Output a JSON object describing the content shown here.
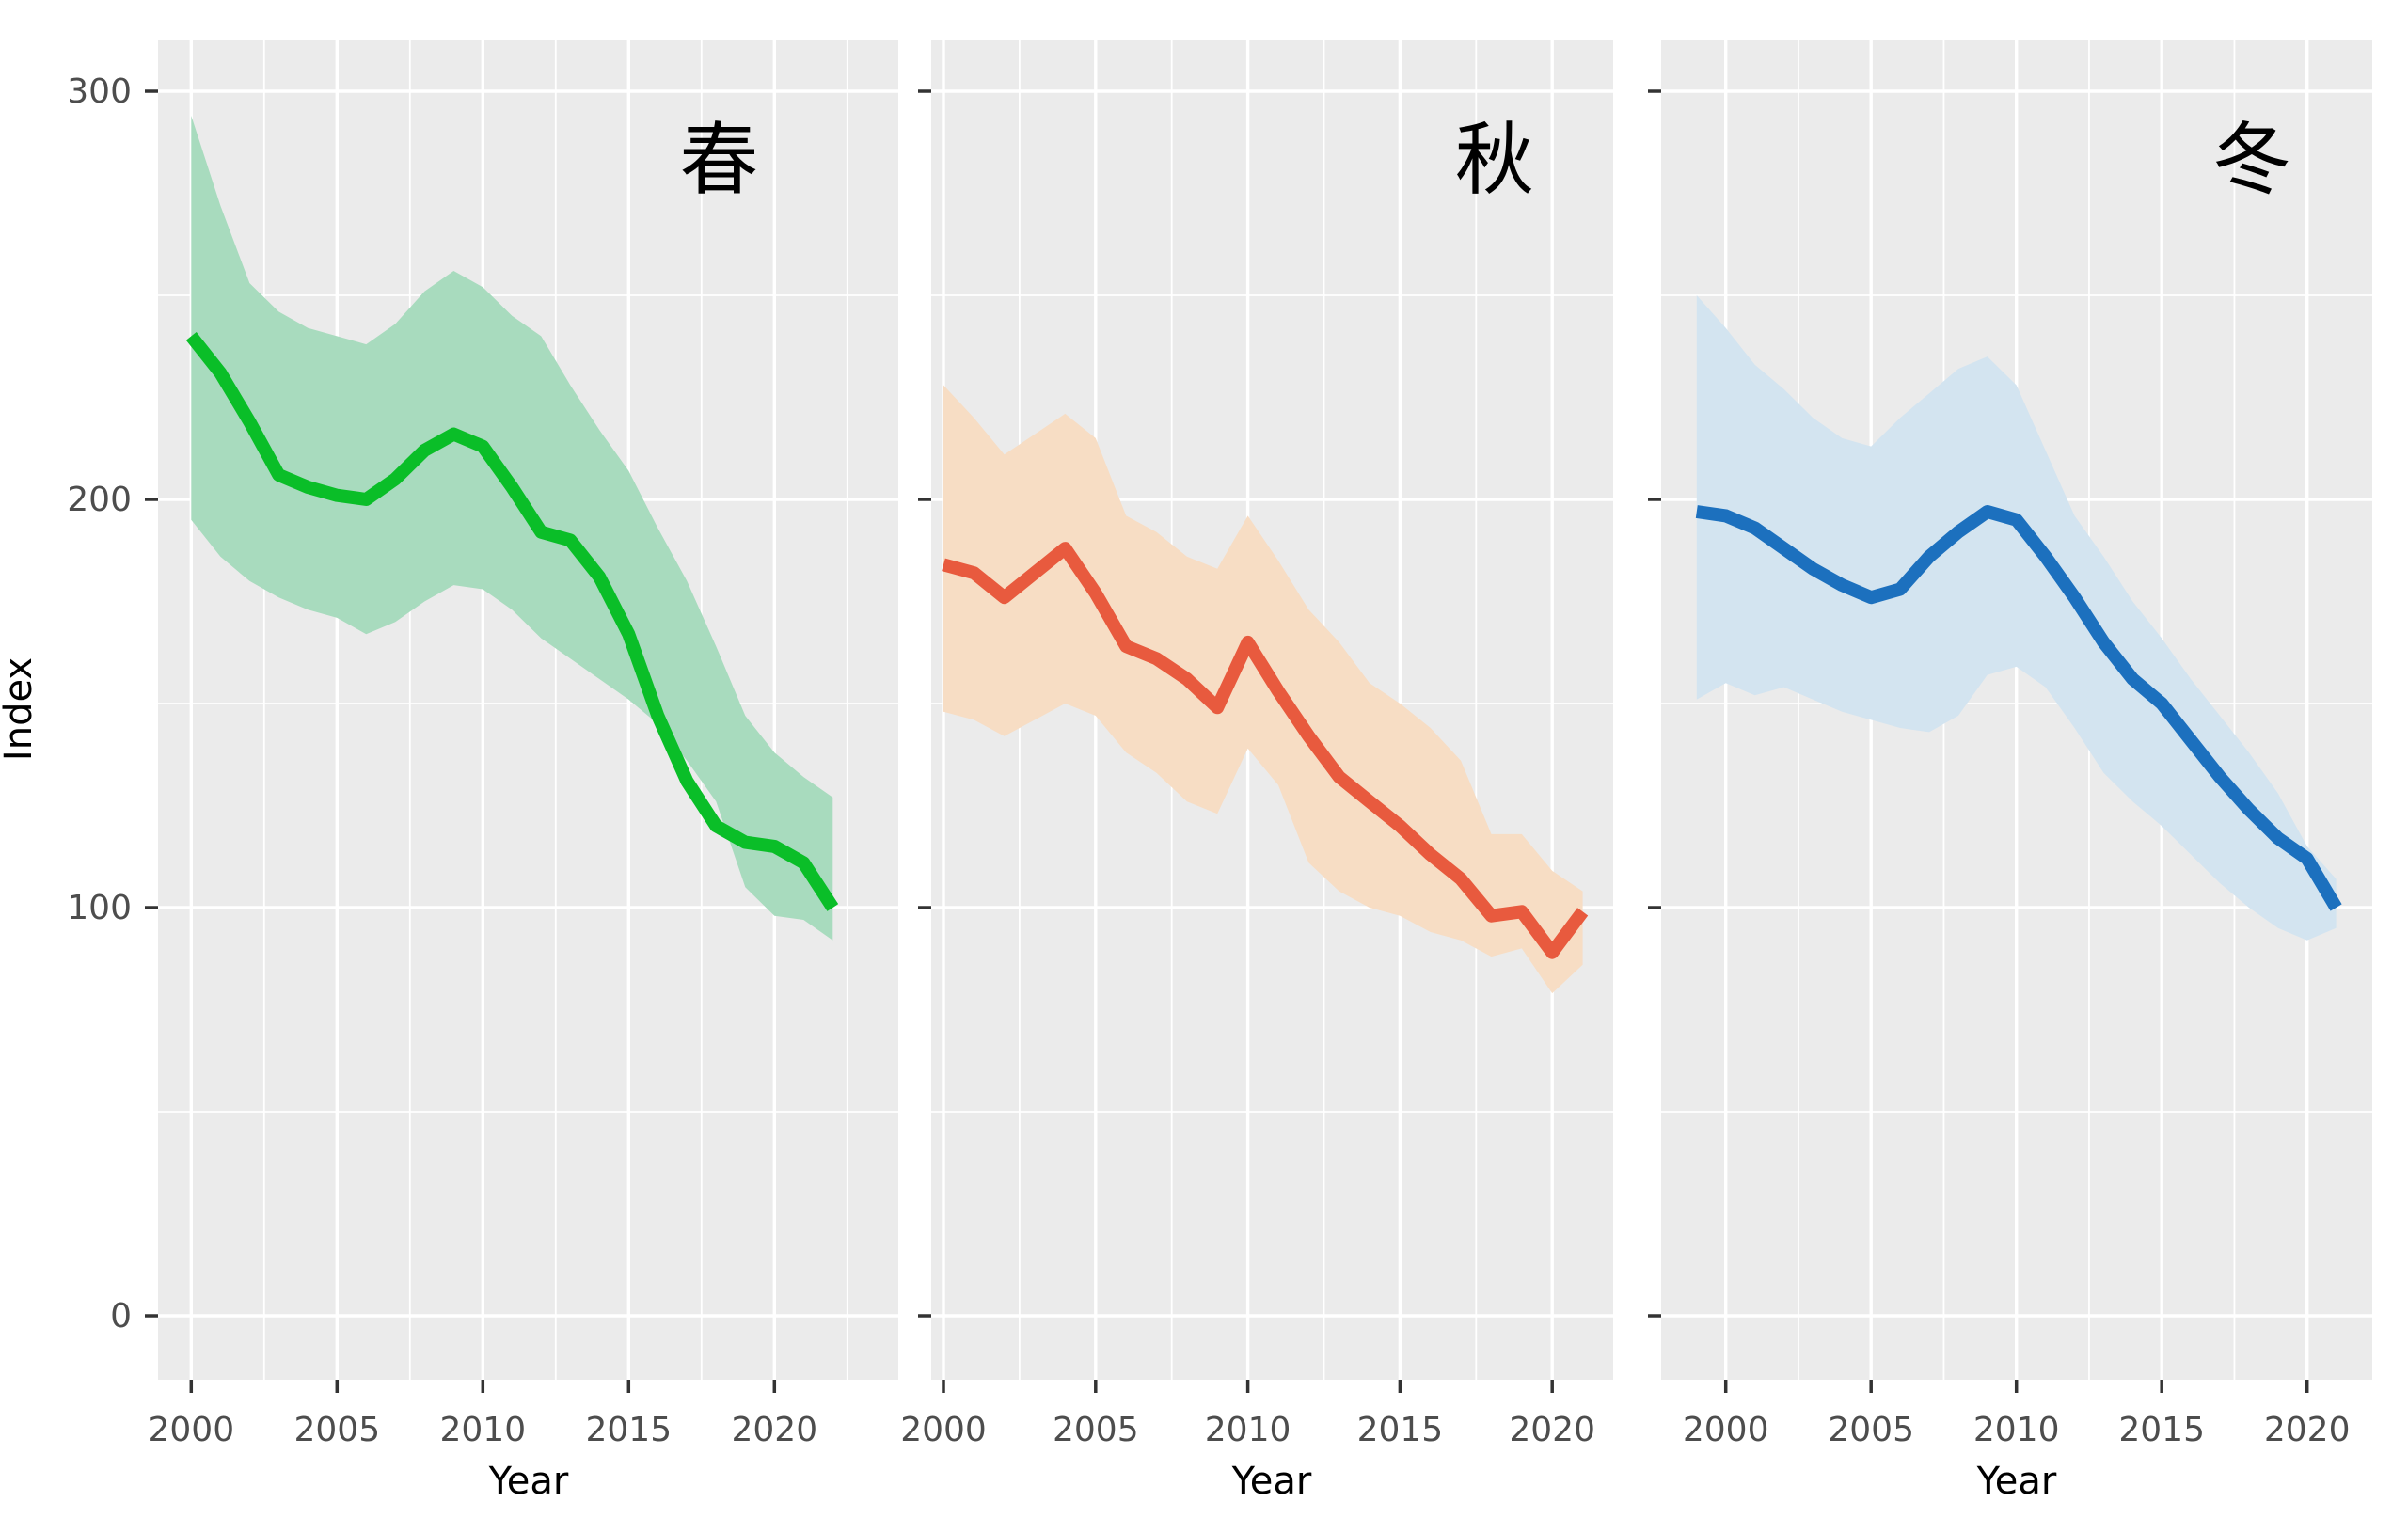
{
  "axes": {
    "y_title": "Index",
    "x_title": "Year",
    "y_ticks": [
      {
        "value": 0,
        "label": "0"
      },
      {
        "value": 100,
        "label": "100"
      },
      {
        "value": 200,
        "label": "200"
      },
      {
        "value": 300,
        "label": "300"
      }
    ],
    "y_minor": [
      50,
      150,
      250
    ],
    "x_tick_years": [
      2000,
      2005,
      2010,
      2015,
      2020
    ],
    "x_tick_labels": [
      "2000",
      "2005",
      "2010",
      "2015",
      "2020"
    ]
  },
  "style": {
    "panel_background": "#EBEBEB",
    "grid_color": "#FFFFFF",
    "tick_color": "#333333",
    "tick_label_color": "#4D4D4D",
    "text_color": "#000000"
  },
  "chart_data": [
    {
      "type": "line",
      "panel_label": "春",
      "line_color": "#0ABE28",
      "band_color": "#A8DBBE",
      "x_minor_years": [
        2002.5,
        2007.5,
        2012.5,
        2017.5,
        2022.5
      ],
      "years": [
        2000,
        2001,
        2002,
        2003,
        2004,
        2005,
        2006,
        2007,
        2008,
        2009,
        2010,
        2011,
        2012,
        2013,
        2014,
        2015,
        2016,
        2017,
        2018,
        2019,
        2020,
        2021,
        2022
      ],
      "line": [
        240,
        231,
        219,
        206,
        203,
        201,
        200,
        205,
        212,
        216,
        213,
        203,
        192,
        190,
        181,
        167,
        147,
        131,
        120,
        116,
        115,
        111,
        100
      ],
      "upper": [
        294,
        272,
        253,
        246,
        242,
        240,
        238,
        243,
        251,
        256,
        252,
        245,
        240,
        228,
        217,
        207,
        193,
        180,
        164,
        147,
        138,
        132,
        127
      ],
      "lower": [
        195,
        186,
        180,
        176,
        173,
        171,
        167,
        170,
        175,
        179,
        178,
        173,
        166,
        161,
        156,
        151,
        145,
        136,
        126,
        105,
        98,
        97,
        92
      ],
      "ylim": [
        0,
        300
      ],
      "xlabel": "Year",
      "ylabel": "Index",
      "grid": true,
      "legend": "none"
    },
    {
      "type": "line",
      "panel_label": "秋",
      "line_color": "#E85A3E",
      "band_color": "#F7DDC4",
      "x_minor_years": [
        2002.5,
        2007.5,
        2012.5,
        2017.5
      ],
      "years": [
        2000,
        2001,
        2002,
        2003,
        2004,
        2005,
        2006,
        2007,
        2008,
        2009,
        2010,
        2011,
        2012,
        2013,
        2014,
        2015,
        2016,
        2017,
        2018,
        2019,
        2020,
        2021
      ],
      "line": [
        184,
        182,
        176,
        182,
        188,
        177,
        164,
        161,
        156,
        149,
        165,
        153,
        142,
        132,
        126,
        120,
        113,
        107,
        98,
        99,
        89,
        99
      ],
      "upper": [
        228,
        220,
        211,
        216,
        221,
        215,
        196,
        192,
        186,
        183,
        196,
        185,
        173,
        165,
        155,
        150,
        144,
        136,
        118,
        118,
        109,
        104
      ],
      "lower": [
        148,
        146,
        142,
        146,
        150,
        147,
        138,
        133,
        126,
        123,
        139,
        130,
        111,
        104,
        100,
        98,
        94,
        92,
        88,
        90,
        79,
        86
      ],
      "ylim": [
        0,
        300
      ],
      "xlabel": "Year",
      "ylabel": "Index",
      "grid": true,
      "legend": "none"
    },
    {
      "type": "line",
      "panel_label": "冬",
      "line_color": "#1C70BE",
      "band_color": "#D3E4F0",
      "x_minor_years": [
        2002.5,
        2007.5,
        2012.5,
        2017.5
      ],
      "years": [
        1999,
        2000,
        2001,
        2002,
        2003,
        2004,
        2005,
        2006,
        2007,
        2008,
        2009,
        2010,
        2011,
        2012,
        2013,
        2014,
        2015,
        2016,
        2017,
        2018,
        2019,
        2020,
        2021
      ],
      "line": [
        197,
        196,
        193,
        188,
        183,
        179,
        176,
        178,
        186,
        192,
        197,
        195,
        186,
        176,
        165,
        156,
        150,
        141,
        132,
        124,
        117,
        112,
        100
      ],
      "upper": [
        250,
        242,
        233,
        227,
        220,
        215,
        213,
        220,
        226,
        232,
        235,
        228,
        212,
        196,
        186,
        175,
        166,
        156,
        147,
        138,
        128,
        115,
        107
      ],
      "lower": [
        151,
        155,
        152,
        154,
        151,
        148,
        146,
        144,
        143,
        147,
        157,
        159,
        154,
        144,
        133,
        126,
        120,
        113,
        106,
        100,
        95,
        92,
        95
      ],
      "ylim": [
        0,
        300
      ],
      "xlabel": "Year",
      "ylabel": "Index",
      "grid": true,
      "legend": "none"
    }
  ]
}
